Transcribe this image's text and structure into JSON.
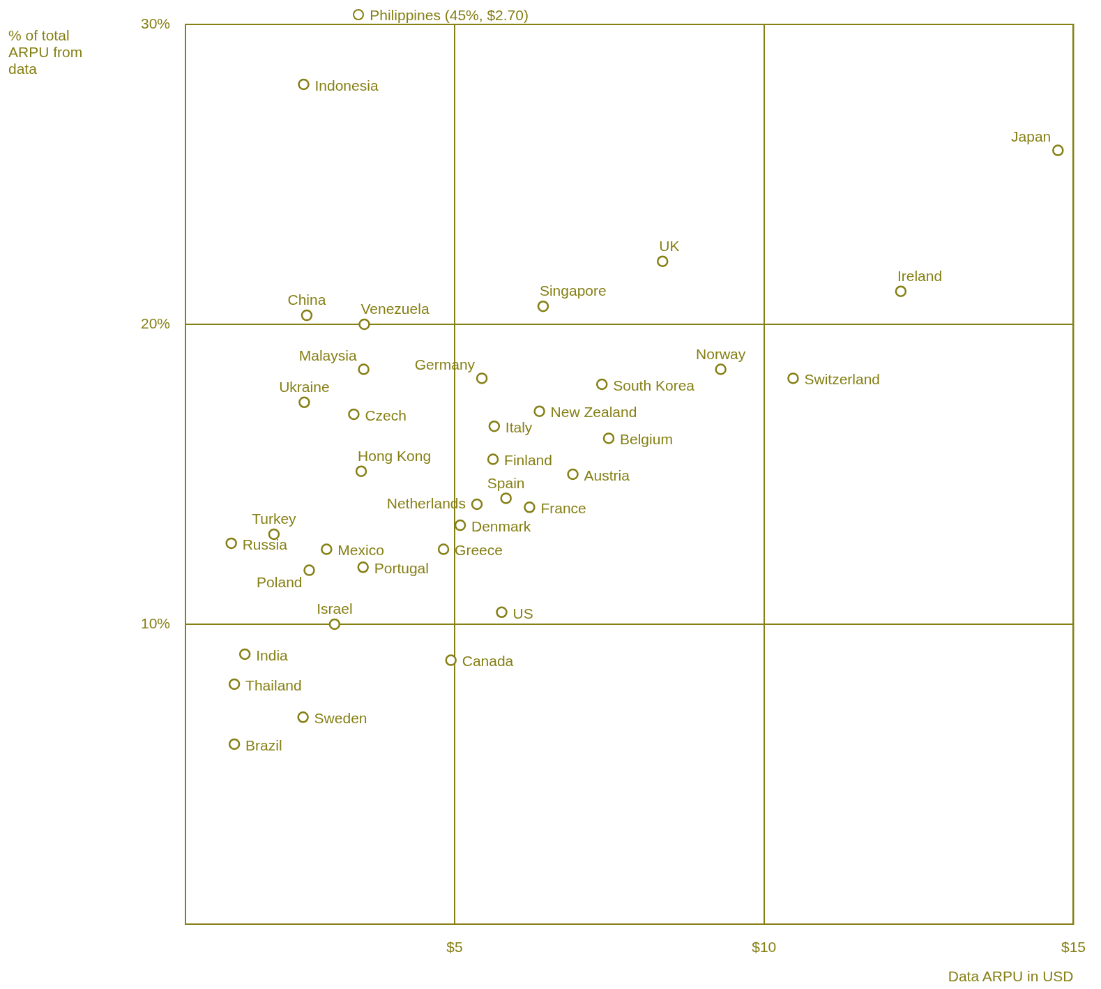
{
  "chart_data": {
    "type": "scatter",
    "xlabel": "Data ARPU in USD",
    "ylabel": "% of total ARPU from data",
    "annotations": [
      "Philippines (45%, $2.70)"
    ],
    "xlim": [
      0.65,
      15
    ],
    "ylim": [
      0,
      30
    ],
    "xticks": [
      {
        "value": 5,
        "label": "$5"
      },
      {
        "value": 10,
        "label": "$10"
      },
      {
        "value": 15,
        "label": "$15"
      }
    ],
    "yticks": [
      {
        "value": 10,
        "label": "10%"
      },
      {
        "value": 20,
        "label": "20%"
      },
      {
        "value": 30,
        "label": "30%"
      }
    ],
    "grid": true,
    "marker": "circle",
    "legend": false,
    "series": [
      {
        "name": "Indonesia",
        "color": "#857f14",
        "x": [
          2.56
        ],
        "values": [
          28.0
        ]
      },
      {
        "name": "Japan",
        "color": "#857f14",
        "x": [
          14.75
        ],
        "values": [
          25.8
        ]
      },
      {
        "name": "UK",
        "color": "#857f14",
        "x": [
          8.36
        ],
        "values": [
          22.1
        ]
      },
      {
        "name": "Ireland",
        "color": "#857f14",
        "x": [
          12.21
        ],
        "values": [
          21.1
        ]
      },
      {
        "name": "Singapore",
        "color": "#857f14",
        "x": [
          6.43
        ],
        "values": [
          20.6
        ]
      },
      {
        "name": "China",
        "color": "#857f14",
        "x": [
          2.61
        ],
        "values": [
          20.3
        ]
      },
      {
        "name": "Venezuela",
        "color": "#857f14",
        "x": [
          3.54
        ],
        "values": [
          20.0
        ]
      },
      {
        "name": "Malaysia",
        "color": "#857f14",
        "x": [
          3.53
        ],
        "values": [
          18.5
        ]
      },
      {
        "name": "Germany",
        "color": "#857f14",
        "x": [
          5.44
        ],
        "values": [
          18.2
        ]
      },
      {
        "name": "Norway",
        "color": "#857f14",
        "x": [
          9.3
        ],
        "values": [
          18.5
        ]
      },
      {
        "name": "Switzerland",
        "color": "#857f14",
        "x": [
          10.47
        ],
        "values": [
          18.2
        ]
      },
      {
        "name": "South Korea",
        "color": "#857f14",
        "x": [
          7.38
        ],
        "values": [
          18.0
        ]
      },
      {
        "name": "Ukraine",
        "color": "#857f14",
        "x": [
          2.57
        ],
        "values": [
          17.4
        ]
      },
      {
        "name": "Czech",
        "color": "#857f14",
        "x": [
          3.37
        ],
        "values": [
          17.0
        ]
      },
      {
        "name": "New Zealand",
        "color": "#857f14",
        "x": [
          6.37
        ],
        "values": [
          17.1
        ]
      },
      {
        "name": "Italy",
        "color": "#857f14",
        "x": [
          5.64
        ],
        "values": [
          16.6
        ]
      },
      {
        "name": "Belgium",
        "color": "#857f14",
        "x": [
          7.49
        ],
        "values": [
          16.2
        ]
      },
      {
        "name": "Hong Kong",
        "color": "#857f14",
        "x": [
          3.49
        ],
        "values": [
          15.1
        ]
      },
      {
        "name": "Finland",
        "color": "#857f14",
        "x": [
          5.62
        ],
        "values": [
          15.5
        ]
      },
      {
        "name": "Austria",
        "color": "#857f14",
        "x": [
          6.91
        ],
        "values": [
          15.0
        ]
      },
      {
        "name": "Spain",
        "color": "#857f14",
        "x": [
          5.83
        ],
        "values": [
          14.2
        ]
      },
      {
        "name": "Netherlands",
        "color": "#857f14",
        "x": [
          5.36
        ],
        "values": [
          14.0
        ]
      },
      {
        "name": "France",
        "color": "#857f14",
        "x": [
          6.21
        ],
        "values": [
          13.9
        ]
      },
      {
        "name": "Denmark",
        "color": "#857f14",
        "x": [
          5.09
        ],
        "values": [
          13.3
        ]
      },
      {
        "name": "Turkey",
        "color": "#857f14",
        "x": [
          2.08
        ],
        "values": [
          13.0
        ]
      },
      {
        "name": "Russia",
        "color": "#857f14",
        "x": [
          1.39
        ],
        "values": [
          12.7
        ]
      },
      {
        "name": "Mexico",
        "color": "#857f14",
        "x": [
          2.93
        ],
        "values": [
          12.5
        ]
      },
      {
        "name": "Greece",
        "color": "#857f14",
        "x": [
          4.82
        ],
        "values": [
          12.5
        ]
      },
      {
        "name": "Portugal",
        "color": "#857f14",
        "x": [
          3.52
        ],
        "values": [
          11.9
        ]
      },
      {
        "name": "Poland",
        "color": "#857f14",
        "x": [
          2.65
        ],
        "values": [
          11.8
        ]
      },
      {
        "name": "Israel",
        "color": "#857f14",
        "x": [
          3.06
        ],
        "values": [
          10.0
        ]
      },
      {
        "name": "US",
        "color": "#857f14",
        "x": [
          5.76
        ],
        "values": [
          10.4
        ]
      },
      {
        "name": "India",
        "color": "#857f14",
        "x": [
          1.61
        ],
        "values": [
          9.0
        ]
      },
      {
        "name": "Canada",
        "color": "#857f14",
        "x": [
          4.94
        ],
        "values": [
          8.8
        ]
      },
      {
        "name": "Thailand",
        "color": "#857f14",
        "x": [
          1.44
        ],
        "values": [
          8.0
        ]
      },
      {
        "name": "Sweden",
        "color": "#857f14",
        "x": [
          2.55
        ],
        "values": [
          6.9
        ]
      },
      {
        "name": "Brazil",
        "color": "#857f14",
        "x": [
          1.44
        ],
        "values": [
          6.0
        ]
      }
    ]
  }
}
